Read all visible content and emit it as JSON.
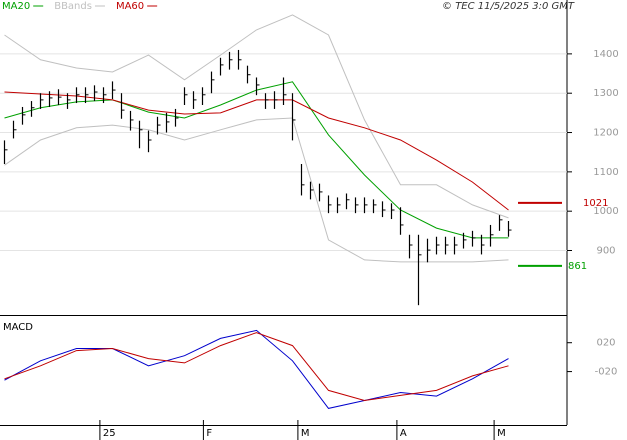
{
  "chart_data": [
    {
      "type": "ohlc",
      "source": "© TEC 11/5/2025 3:0 GMT",
      "x": [
        0,
        1,
        2,
        3,
        4,
        5,
        6,
        7,
        8,
        9,
        10,
        11,
        12,
        13,
        14,
        15,
        16,
        17,
        18,
        19,
        20,
        21,
        22,
        23,
        24,
        25,
        26,
        27,
        28,
        29,
        30,
        31,
        32,
        33,
        34,
        35,
        36,
        37,
        38,
        39,
        40,
        41,
        42,
        43,
        44,
        45,
        46,
        47,
        48,
        49,
        50,
        51,
        52,
        53,
        54,
        55,
        56
      ],
      "high": [
        1180,
        1230,
        1265,
        1280,
        1300,
        1305,
        1310,
        1300,
        1315,
        1315,
        1320,
        1315,
        1330,
        1300,
        1255,
        1230,
        1205,
        1240,
        1250,
        1260,
        1315,
        1305,
        1315,
        1355,
        1390,
        1405,
        1410,
        1370,
        1340,
        1300,
        1305,
        1340,
        1300,
        1120,
        1075,
        1070,
        1040,
        1035,
        1045,
        1035,
        1035,
        1030,
        1025,
        1020,
        1010,
        940,
        940,
        930,
        935,
        935,
        935,
        945,
        950,
        940,
        965,
        990,
        975
      ],
      "low": [
        1120,
        1185,
        1220,
        1240,
        1260,
        1265,
        1270,
        1260,
        1275,
        1275,
        1280,
        1275,
        1285,
        1235,
        1205,
        1160,
        1150,
        1195,
        1200,
        1215,
        1270,
        1260,
        1270,
        1300,
        1345,
        1360,
        1360,
        1325,
        1295,
        1260,
        1260,
        1270,
        1180,
        1040,
        1030,
        1025,
        995,
        995,
        1005,
        995,
        995,
        995,
        985,
        980,
        940,
        880,
        761,
        870,
        890,
        890,
        890,
        905,
        910,
        890,
        910,
        950,
        935
      ],
      "close": [
        1156,
        1207,
        1245,
        1263,
        1283,
        1288,
        1290,
        1283,
        1296,
        1296,
        1303,
        1296,
        1308,
        1257,
        1232,
        1207,
        1181,
        1219,
        1227,
        1237,
        1296,
        1283,
        1296,
        1334,
        1372,
        1385,
        1385,
        1347,
        1321,
        1283,
        1283,
        1296,
        1232,
        1067,
        1054,
        1049,
        1016,
        1016,
        1029,
        1016,
        1016,
        1016,
        1003,
        1003,
        965,
        914,
        889,
        901,
        914,
        914,
        914,
        927,
        932,
        914,
        940,
        978,
        952
      ],
      "series": [
        {
          "name": "MA20",
          "color": "#00a000",
          "x": [
            0,
            4,
            8,
            12,
            16,
            20,
            24,
            28,
            32,
            36,
            40,
            44,
            48,
            52,
            56
          ],
          "values": [
            1237,
            1263,
            1278,
            1283,
            1252,
            1237,
            1270,
            1308,
            1329,
            1194,
            1092,
            1003,
            957,
            932,
            932
          ]
        },
        {
          "name": "BBands",
          "color": "#c0c0c0",
          "x": [
            0,
            4,
            8,
            12,
            16,
            20,
            24,
            28,
            32,
            36,
            40,
            44,
            48,
            52,
            56
          ],
          "upper": [
            1448,
            1385,
            1364,
            1354,
            1397,
            1334,
            1397,
            1461,
            1499,
            1448,
            1232,
            1067,
            1067,
            1016,
            983
          ],
          "lower": [
            1117,
            1181,
            1212,
            1219,
            1207,
            1181,
            1207,
            1232,
            1237,
            927,
            876,
            871,
            871,
            871,
            876
          ]
        },
        {
          "name": "MA60",
          "color": "#c00000",
          "x": [
            0,
            4,
            8,
            12,
            16,
            20,
            24,
            28,
            32,
            36,
            40,
            44,
            48,
            52,
            56
          ],
          "values": [
            1303,
            1298,
            1293,
            1283,
            1257,
            1247,
            1250,
            1283,
            1283,
            1237,
            1212,
            1181,
            1130,
            1074,
            1003
          ]
        }
      ],
      "markers": [
        {
          "value": 1021,
          "color": "#c00000"
        },
        {
          "value": 861,
          "color": "#00a000"
        }
      ],
      "xlim": [
        -0.5,
        62.5
      ],
      "ylim": [
        736,
        1537
      ],
      "yticks": [
        900,
        1000,
        1100,
        1200,
        1300,
        1400
      ],
      "grid": true
    },
    {
      "type": "macd",
      "title": "MACD",
      "series": [
        {
          "color": "#0000cc",
          "x": [
            0,
            4,
            8,
            12,
            16,
            20,
            24,
            28,
            32,
            36,
            40,
            44,
            48,
            52,
            56
          ],
          "values": [
            -32,
            -5,
            12,
            12,
            -12,
            2,
            26,
            37,
            -5,
            -71,
            -60,
            -49,
            -54,
            -30,
            -2
          ]
        },
        {
          "color": "#c00000",
          "x": [
            0,
            4,
            8,
            12,
            16,
            20,
            24,
            28,
            32,
            36,
            40,
            44,
            48,
            52,
            56
          ],
          "values": [
            -30,
            -12,
            9,
            12,
            -2,
            -8,
            16,
            34,
            16,
            -46,
            -60,
            -53,
            -46,
            -26,
            -12
          ]
        }
      ],
      "xlim": [
        -0.5,
        62.5
      ],
      "ylim": [
        -94,
        57
      ],
      "yticks": [
        {
          "value": 20,
          "label": "020"
        },
        {
          "value": -20,
          "label": "-020"
        }
      ],
      "xticks": [
        {
          "value": 10.6,
          "label": "25"
        },
        {
          "value": 22.1,
          "label": "F"
        },
        {
          "value": 32.6,
          "label": "M"
        },
        {
          "value": 43.6,
          "label": "A"
        },
        {
          "value": 54.4,
          "label": "M"
        }
      ]
    }
  ]
}
